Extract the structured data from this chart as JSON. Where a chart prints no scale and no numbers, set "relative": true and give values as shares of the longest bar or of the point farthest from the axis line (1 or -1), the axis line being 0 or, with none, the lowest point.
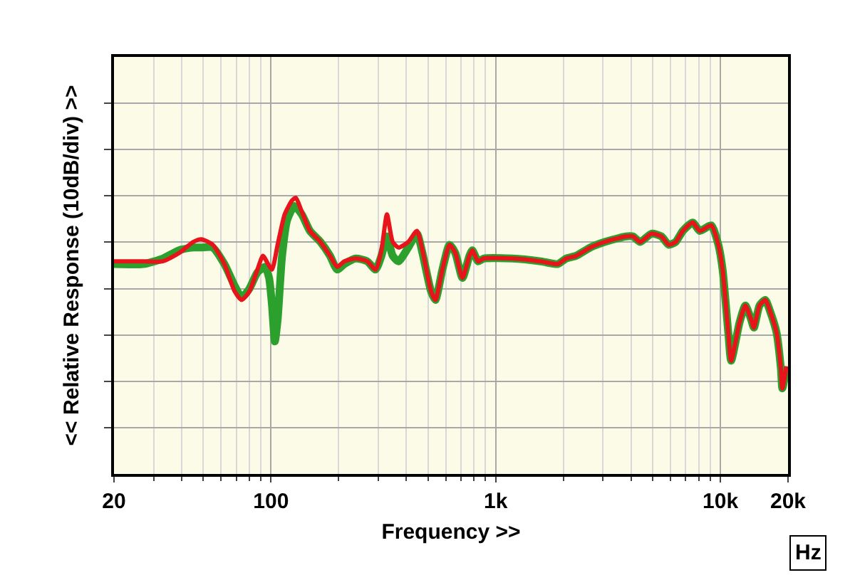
{
  "chart_data": {
    "type": "line",
    "xlabel": "Frequency >>",
    "ylabel": "<< Relative Response (10dB/div) >>",
    "relative": true,
    "log": "x",
    "grid": true,
    "marker": "none",
    "line_style": "solid",
    "xlim": [
      20,
      20000
    ],
    "xticks": [
      20,
      100,
      {
        "value": 1000,
        "label": "1k"
      },
      {
        "value": 10000,
        "label": "10k"
      },
      {
        "value": 20000,
        "label": "20k"
      }
    ],
    "annotations": [
      "Hz"
    ],
    "series": [
      {
        "color": "#2ca02c",
        "x": [
          20,
          27,
          33,
          39,
          45,
          49,
          55,
          62,
          69,
          74,
          80,
          87,
          94,
          98,
          101,
          104,
          107,
          112,
          118,
          127,
          137,
          149,
          166,
          183,
          197,
          212,
          238,
          268,
          292,
          310,
          328,
          348,
          369,
          408,
          446,
          472,
          516,
          539,
          579,
          623,
          661,
          711,
          764,
          787,
          834,
          884,
          1184,
          1584,
          1887,
          2060,
          2280,
          2638,
          3052,
          3798,
          4084,
          4394,
          4938,
          5468,
          5880,
          6324,
          6804,
          7534,
          8104,
          9104,
          9792,
          10230,
          10846,
          11166,
          12184,
          12916,
          13692,
          14096,
          14938,
          15838,
          16790,
          17800,
          18596,
          18868,
          19700
        ],
        "values": [
          0.76,
          0.76,
          0.78,
          0.81,
          0.82,
          0.82,
          0.82,
          0.76,
          0.68,
          0.64,
          0.67,
          0.73,
          0.75,
          0.71,
          0.61,
          0.48,
          0.56,
          0.79,
          0.92,
          0.97,
          0.94,
          0.88,
          0.84,
          0.79,
          0.74,
          0.76,
          0.78,
          0.77,
          0.74,
          0.79,
          0.86,
          0.79,
          0.77,
          0.82,
          0.87,
          0.8,
          0.66,
          0.63,
          0.74,
          0.83,
          0.8,
          0.71,
          0.79,
          0.81,
          0.77,
          0.78,
          0.78,
          0.77,
          0.76,
          0.78,
          0.79,
          0.82,
          0.84,
          0.86,
          0.86,
          0.84,
          0.87,
          0.86,
          0.83,
          0.84,
          0.88,
          0.91,
          0.88,
          0.9,
          0.83,
          0.74,
          0.51,
          0.41,
          0.55,
          0.61,
          0.56,
          0.53,
          0.61,
          0.63,
          0.58,
          0.51,
          0.38,
          0.31,
          0.39
        ]
      },
      {
        "color": "#e8141c",
        "x": [
          20,
          27,
          33,
          39,
          45,
          49,
          55,
          62,
          69,
          74,
          80,
          87,
          92,
          97,
          101,
          107,
          115,
          124,
          129,
          137,
          149,
          166,
          183,
          197,
          212,
          238,
          268,
          292,
          310,
          328,
          348,
          369,
          408,
          446,
          472,
          516,
          539,
          579,
          623,
          661,
          711,
          764,
          787,
          834,
          884,
          1184,
          1584,
          1887,
          2060,
          2280,
          2638,
          3052,
          3798,
          4084,
          4394,
          4938,
          5468,
          5880,
          6324,
          6804,
          7534,
          8104,
          9104,
          9792,
          10230,
          10846,
          11166,
          12184,
          12916,
          13692,
          14096,
          14938,
          15838,
          16790,
          17800,
          18596,
          18868,
          19700
        ],
        "values": [
          0.77,
          0.77,
          0.77,
          0.8,
          0.84,
          0.85,
          0.83,
          0.76,
          0.66,
          0.63,
          0.66,
          0.74,
          0.79,
          0.76,
          0.74,
          0.83,
          0.94,
          0.99,
          1,
          0.95,
          0.88,
          0.84,
          0.79,
          0.75,
          0.77,
          0.78,
          0.77,
          0.74,
          0.81,
          0.94,
          0.84,
          0.82,
          0.84,
          0.88,
          0.81,
          0.66,
          0.63,
          0.74,
          0.83,
          0.8,
          0.71,
          0.79,
          0.81,
          0.77,
          0.78,
          0.78,
          0.77,
          0.76,
          0.78,
          0.79,
          0.82,
          0.84,
          0.86,
          0.86,
          0.84,
          0.87,
          0.86,
          0.83,
          0.84,
          0.88,
          0.91,
          0.88,
          0.9,
          0.83,
          0.74,
          0.51,
          0.41,
          0.55,
          0.61,
          0.56,
          0.53,
          0.61,
          0.63,
          0.58,
          0.51,
          0.38,
          0.31,
          0.39
        ]
      }
    ]
  }
}
